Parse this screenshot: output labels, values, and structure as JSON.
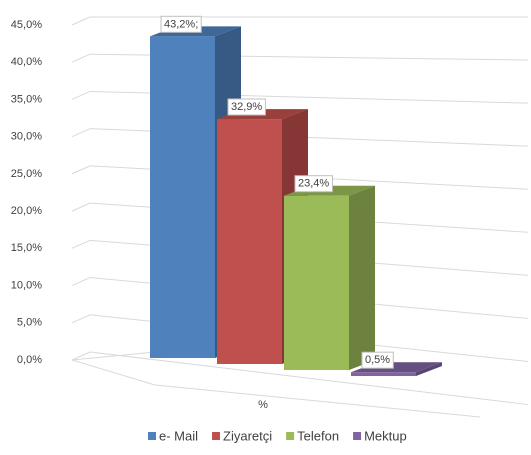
{
  "chart_data": {
    "type": "bar3d",
    "categories": [
      "%"
    ],
    "series": [
      {
        "name": "e- Mail",
        "color": "#4f81bd",
        "values": [
          43.2
        ],
        "value_labels": [
          "43,2%;"
        ]
      },
      {
        "name": "Ziyaretçi",
        "color": "#c0504d",
        "values": [
          32.9
        ],
        "value_labels": [
          "32,9%"
        ]
      },
      {
        "name": "Telefon",
        "color": "#9bbb59",
        "values": [
          23.4
        ],
        "value_labels": [
          "23,4%"
        ]
      },
      {
        "name": "Mektup",
        "color": "#8064a2",
        "values": [
          0.5
        ],
        "value_labels": [
          "0,5%"
        ]
      }
    ],
    "ylim": [
      0,
      45
    ],
    "yticks": [
      {
        "value": 0,
        "label": "0,0%"
      },
      {
        "value": 5,
        "label": "5,0%"
      },
      {
        "value": 10,
        "label": "10,0%"
      },
      {
        "value": 15,
        "label": "15,0%"
      },
      {
        "value": 20,
        "label": "20,0%"
      },
      {
        "value": 25,
        "label": "25,0%"
      },
      {
        "value": 30,
        "label": "30,0%"
      },
      {
        "value": 35,
        "label": "35,0%"
      },
      {
        "value": 40,
        "label": "40,0%"
      },
      {
        "value": 45,
        "label": "45,0%"
      }
    ],
    "grid": true,
    "legend": "bottom"
  }
}
